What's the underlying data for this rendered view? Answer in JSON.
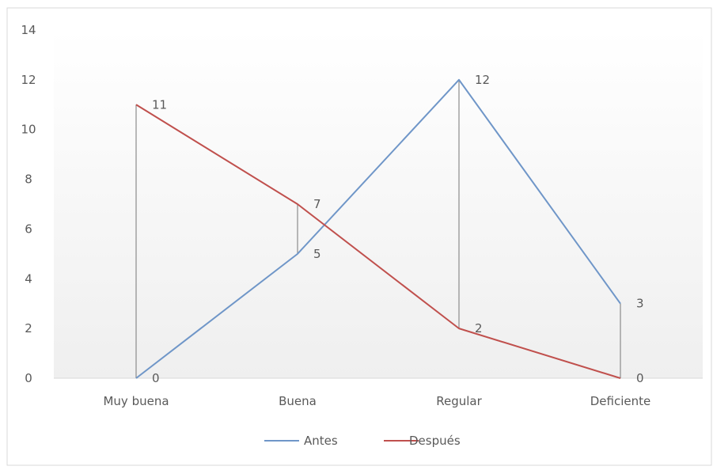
{
  "chart_data": {
    "type": "line",
    "categories": [
      "Muy buena",
      "Buena",
      "Regular",
      "Deficiente"
    ],
    "series": [
      {
        "name": "Antes",
        "values": [
          0,
          5,
          12,
          3
        ],
        "color": "#6F96C8"
      },
      {
        "name": "Después",
        "values": [
          11,
          7,
          2,
          0
        ],
        "color": "#C0504D"
      }
    ],
    "data_labels": [
      "11",
      "7",
      "12",
      "3",
      "0",
      "5",
      "2",
      "0"
    ],
    "ylim": [
      0,
      14
    ],
    "yticks": [
      0,
      2,
      4,
      6,
      8,
      10,
      12,
      14
    ],
    "ytick_labels": [
      "0",
      "2",
      "4",
      "6",
      "8",
      "10",
      "12",
      "14"
    ],
    "high_low_lines": true,
    "grid": false,
    "legend_position": "bottom",
    "background": "gradient white to light gray"
  }
}
